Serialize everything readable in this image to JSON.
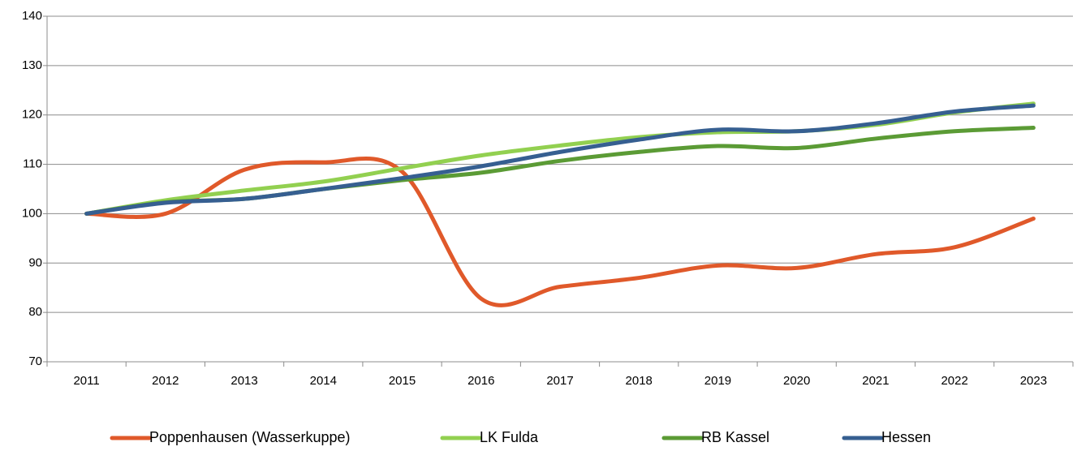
{
  "chart_data": {
    "type": "line",
    "categories": [
      "2011",
      "2012",
      "2013",
      "2014",
      "2015",
      "2016",
      "2017",
      "2018",
      "2019",
      "2020",
      "2021",
      "2022",
      "2023"
    ],
    "series": [
      {
        "name": "Poppenhausen (Wasserkuppe)",
        "color": "#e0592a",
        "values": [
          100,
          100,
          108.9,
          110.4,
          108.5,
          82.8,
          85.2,
          87,
          89.5,
          89,
          91.8,
          93.2,
          99
        ]
      },
      {
        "name": "LK Fulda",
        "color": "#92d050",
        "values": [
          100,
          102.7,
          104.7,
          106.5,
          109.2,
          111.8,
          113.8,
          115.5,
          116.5,
          116.7,
          118,
          120.5,
          122.3
        ]
      },
      {
        "name": "RB Kassel",
        "color": "#5b9b35",
        "values": [
          100,
          102.3,
          103,
          105,
          106.8,
          108.3,
          110.7,
          112.5,
          113.7,
          113.3,
          115.2,
          116.7,
          117.4
        ]
      },
      {
        "name": "Hessen",
        "color": "#365f91",
        "values": [
          100,
          102.2,
          103,
          105,
          107.2,
          109.6,
          112.5,
          115,
          117,
          116.7,
          118.3,
          120.7,
          121.9
        ]
      }
    ],
    "ylim": [
      70,
      140
    ],
    "yticks": [
      70,
      80,
      90,
      100,
      110,
      120,
      130,
      140
    ],
    "grid": true,
    "legend": "bottom"
  }
}
